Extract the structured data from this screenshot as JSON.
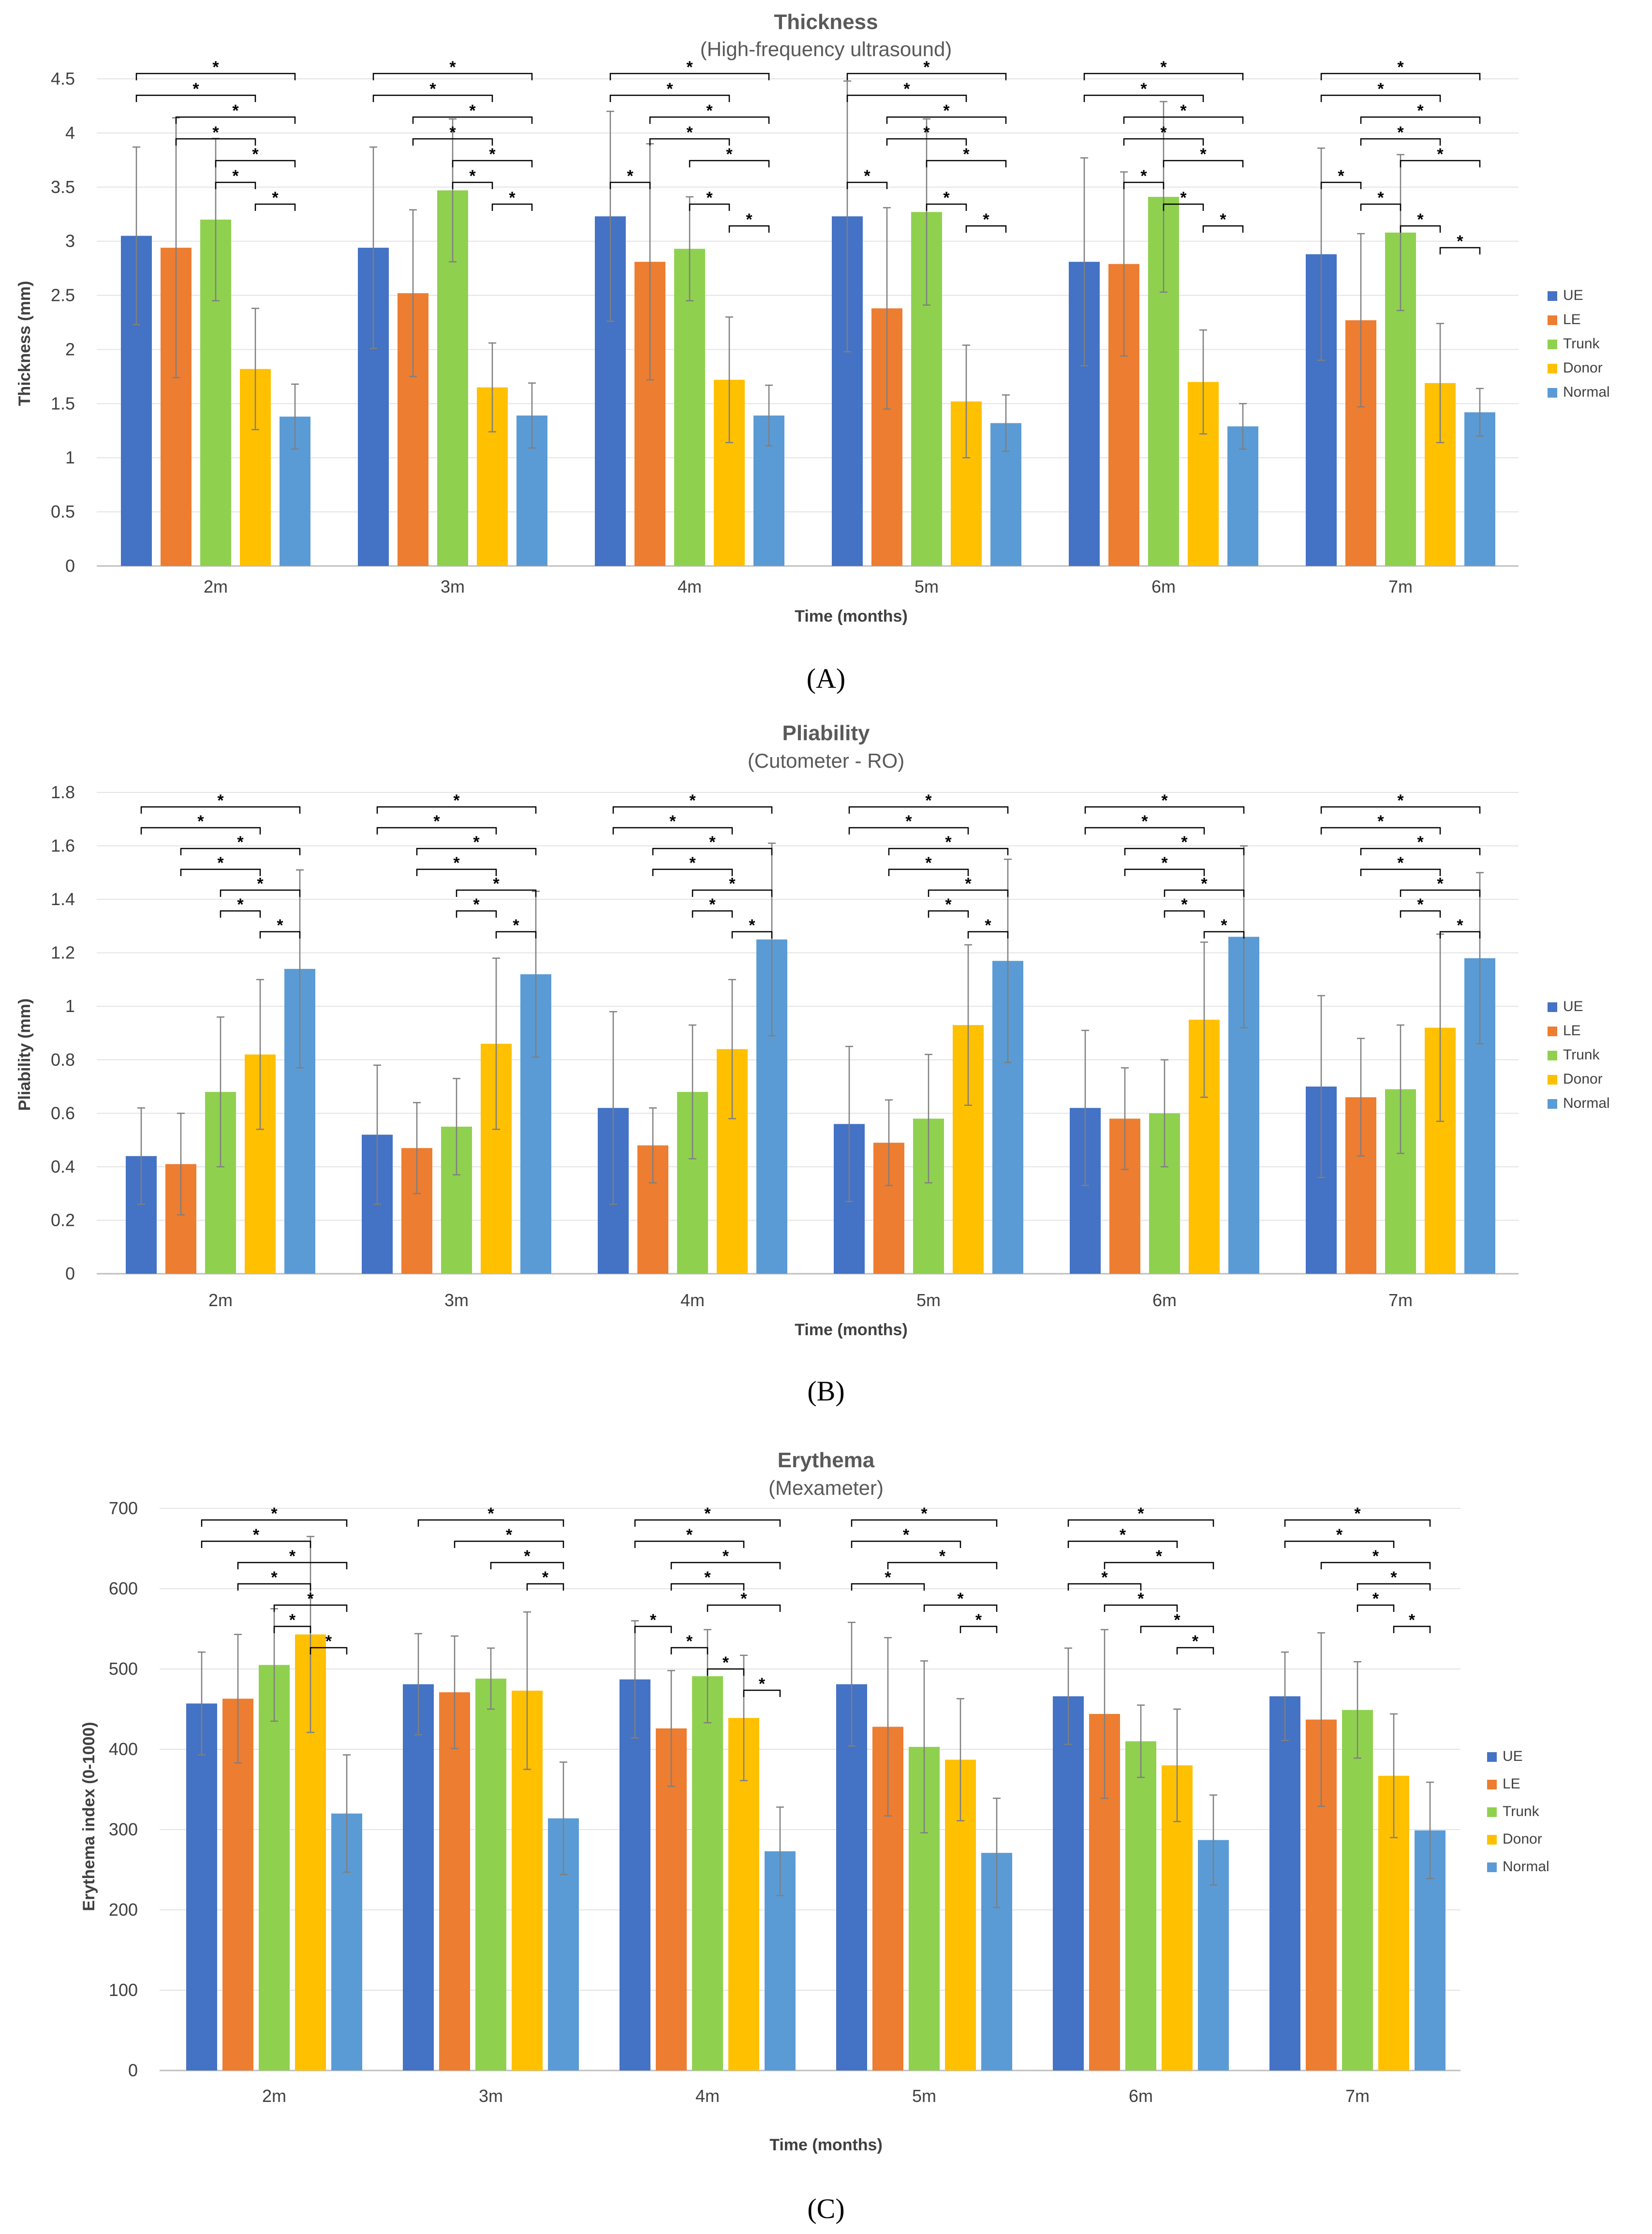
{
  "chart_data": [
    {
      "type": "bar",
      "panel_label": "A",
      "title": "Thickness",
      "subtitle": "(High-frequency ultrasound)",
      "xlabel": "Time (months)",
      "ylabel": "Thickness (mm)",
      "ylim": [
        0,
        4.5
      ],
      "yticks": [
        "0",
        "0.5",
        "1",
        "1.5",
        "2",
        "2.5",
        "3",
        "3.5",
        "4",
        "4.5"
      ],
      "categories": [
        "2m",
        "3m",
        "4m",
        "5m",
        "6m",
        "7m"
      ],
      "series": [
        {
          "name": "UE",
          "color": "#4472C4",
          "values": [
            3.05,
            2.94,
            3.23,
            3.23,
            2.81,
            2.88
          ],
          "errors": [
            0.82,
            0.93,
            0.97,
            1.25,
            0.96,
            0.98
          ]
        },
        {
          "name": "LE",
          "color": "#ED7D31",
          "values": [
            2.94,
            2.52,
            2.81,
            2.38,
            2.79,
            2.27
          ],
          "errors": [
            1.2,
            0.77,
            1.09,
            0.93,
            0.85,
            0.8
          ]
        },
        {
          "name": "Trunk",
          "color": "#8FD14F",
          "values": [
            3.2,
            3.47,
            2.93,
            3.27,
            3.41,
            3.08
          ],
          "errors": [
            0.75,
            0.66,
            0.48,
            0.86,
            0.88,
            0.72
          ]
        },
        {
          "name": "Donor",
          "color": "#FFC000",
          "values": [
            1.82,
            1.65,
            1.72,
            1.52,
            1.7,
            1.69
          ],
          "errors": [
            0.56,
            0.41,
            0.58,
            0.52,
            0.48,
            0.55
          ]
        },
        {
          "name": "Normal",
          "color": "#5B9BD5",
          "values": [
            1.38,
            1.39,
            1.39,
            1.32,
            1.29,
            1.42
          ],
          "errors": [
            0.3,
            0.3,
            0.28,
            0.26,
            0.21,
            0.22
          ]
        }
      ],
      "significance": [
        [
          [
            0,
            4
          ],
          [
            0,
            3
          ],
          [
            1,
            4
          ],
          [
            1,
            3
          ],
          [
            2,
            4
          ],
          [
            2,
            3
          ],
          [
            3,
            4
          ]
        ],
        [
          [
            0,
            4
          ],
          [
            0,
            3
          ],
          [
            1,
            4
          ],
          [
            1,
            3
          ],
          [
            2,
            4
          ],
          [
            2,
            3
          ],
          [
            3,
            4
          ]
        ],
        [
          [
            0,
            4
          ],
          [
            0,
            3
          ],
          [
            1,
            4
          ],
          [
            1,
            3
          ],
          [
            2,
            4
          ],
          [
            2,
            3
          ],
          [
            3,
            4
          ],
          [
            0,
            1
          ]
        ],
        [
          [
            0,
            4
          ],
          [
            0,
            3
          ],
          [
            1,
            4
          ],
          [
            1,
            3
          ],
          [
            2,
            4
          ],
          [
            2,
            3
          ],
          [
            3,
            4
          ],
          [
            0,
            1
          ]
        ],
        [
          [
            0,
            4
          ],
          [
            0,
            3
          ],
          [
            1,
            4
          ],
          [
            1,
            3
          ],
          [
            2,
            4
          ],
          [
            2,
            3
          ],
          [
            3,
            4
          ],
          [
            1,
            2
          ]
        ],
        [
          [
            0,
            4
          ],
          [
            0,
            3
          ],
          [
            1,
            4
          ],
          [
            1,
            3
          ],
          [
            2,
            4
          ],
          [
            2,
            3
          ],
          [
            3,
            4
          ],
          [
            0,
            1
          ],
          [
            1,
            2
          ]
        ]
      ]
    },
    {
      "type": "bar",
      "panel_label": "B",
      "title": "Pliability",
      "subtitle": "(Cutometer - RO)",
      "xlabel": "Time (months)",
      "ylabel": "Pliability (mm)",
      "ylim": [
        0,
        1.8
      ],
      "yticks": [
        "0",
        "0.2",
        "0.4",
        "0.6",
        "0.8",
        "1",
        "1.2",
        "1.4",
        "1.6",
        "1.8"
      ],
      "categories": [
        "2m",
        "3m",
        "4m",
        "5m",
        "6m",
        "7m"
      ],
      "series": [
        {
          "name": "UE",
          "color": "#4472C4",
          "values": [
            0.44,
            0.52,
            0.62,
            0.56,
            0.62,
            0.7
          ],
          "errors": [
            0.18,
            0.26,
            0.36,
            0.29,
            0.29,
            0.34
          ]
        },
        {
          "name": "LE",
          "color": "#ED7D31",
          "values": [
            0.41,
            0.47,
            0.48,
            0.49,
            0.58,
            0.66
          ],
          "errors": [
            0.19,
            0.17,
            0.14,
            0.16,
            0.19,
            0.22
          ]
        },
        {
          "name": "Trunk",
          "color": "#8FD14F",
          "values": [
            0.68,
            0.55,
            0.68,
            0.58,
            0.6,
            0.69
          ],
          "errors": [
            0.28,
            0.18,
            0.25,
            0.24,
            0.2,
            0.24
          ]
        },
        {
          "name": "Donor",
          "color": "#FFC000",
          "values": [
            0.82,
            0.86,
            0.84,
            0.93,
            0.95,
            0.92
          ],
          "errors": [
            0.28,
            0.32,
            0.26,
            0.3,
            0.29,
            0.35
          ]
        },
        {
          "name": "Normal",
          "color": "#5B9BD5",
          "values": [
            1.14,
            1.12,
            1.25,
            1.17,
            1.26,
            1.18
          ],
          "errors": [
            0.37,
            0.31,
            0.36,
            0.38,
            0.34,
            0.32
          ]
        }
      ],
      "significance": [
        [
          [
            0,
            4
          ],
          [
            0,
            3
          ],
          [
            1,
            4
          ],
          [
            1,
            3
          ],
          [
            2,
            4
          ],
          [
            2,
            3
          ],
          [
            3,
            4
          ]
        ],
        [
          [
            0,
            4
          ],
          [
            0,
            3
          ],
          [
            1,
            4
          ],
          [
            1,
            3
          ],
          [
            2,
            4
          ],
          [
            2,
            3
          ],
          [
            3,
            4
          ]
        ],
        [
          [
            0,
            4
          ],
          [
            0,
            3
          ],
          [
            1,
            4
          ],
          [
            1,
            3
          ],
          [
            2,
            4
          ],
          [
            2,
            3
          ],
          [
            3,
            4
          ]
        ],
        [
          [
            0,
            4
          ],
          [
            0,
            3
          ],
          [
            1,
            4
          ],
          [
            1,
            3
          ],
          [
            2,
            4
          ],
          [
            2,
            3
          ],
          [
            3,
            4
          ]
        ],
        [
          [
            0,
            4
          ],
          [
            0,
            3
          ],
          [
            1,
            4
          ],
          [
            1,
            3
          ],
          [
            2,
            4
          ],
          [
            2,
            3
          ],
          [
            3,
            4
          ]
        ],
        [
          [
            0,
            4
          ],
          [
            0,
            3
          ],
          [
            1,
            4
          ],
          [
            1,
            3
          ],
          [
            2,
            4
          ],
          [
            2,
            3
          ],
          [
            3,
            4
          ]
        ]
      ]
    },
    {
      "type": "bar",
      "panel_label": "C",
      "title": "Erythema",
      "subtitle": "(Mexameter)",
      "xlabel": "Time (months)",
      "ylabel": "Erythema index (0-1000)",
      "ylim": [
        0,
        700
      ],
      "yticks": [
        "0",
        "100",
        "200",
        "300",
        "400",
        "500",
        "600",
        "700"
      ],
      "categories": [
        "2m",
        "3m",
        "4m",
        "5m",
        "6m",
        "7m"
      ],
      "series": [
        {
          "name": "UE",
          "color": "#4472C4",
          "values": [
            457,
            481,
            487,
            481,
            466,
            466
          ],
          "errors": [
            64,
            63,
            73,
            77,
            60,
            55
          ]
        },
        {
          "name": "LE",
          "color": "#ED7D31",
          "values": [
            463,
            471,
            426,
            428,
            444,
            437
          ],
          "errors": [
            80,
            70,
            72,
            111,
            105,
            108
          ]
        },
        {
          "name": "Trunk",
          "color": "#8FD14F",
          "values": [
            505,
            488,
            491,
            403,
            410,
            449
          ],
          "errors": [
            70,
            38,
            58,
            107,
            45,
            60
          ]
        },
        {
          "name": "Donor",
          "color": "#FFC000",
          "values": [
            543,
            473,
            439,
            387,
            380,
            367
          ],
          "errors": [
            122,
            98,
            78,
            76,
            70,
            77
          ]
        },
        {
          "name": "Normal",
          "color": "#5B9BD5",
          "values": [
            320,
            314,
            273,
            271,
            287,
            299
          ],
          "errors": [
            73,
            70,
            55,
            68,
            56,
            60
          ]
        }
      ],
      "significance": [
        [
          [
            0,
            4
          ],
          [
            0,
            3
          ],
          [
            1,
            4
          ],
          [
            1,
            3
          ],
          [
            2,
            4
          ],
          [
            2,
            3
          ],
          [
            3,
            4
          ]
        ],
        [
          [
            0,
            4
          ],
          [
            1,
            4
          ],
          [
            2,
            4
          ],
          [
            3,
            4
          ]
        ],
        [
          [
            0,
            4
          ],
          [
            0,
            3
          ],
          [
            1,
            4
          ],
          [
            1,
            3
          ],
          [
            2,
            4
          ],
          [
            2,
            3
          ],
          [
            3,
            4
          ],
          [
            0,
            1
          ],
          [
            1,
            2
          ]
        ],
        [
          [
            0,
            4
          ],
          [
            0,
            3
          ],
          [
            1,
            4
          ],
          [
            2,
            4
          ],
          [
            3,
            4
          ],
          [
            0,
            2
          ]
        ],
        [
          [
            0,
            4
          ],
          [
            0,
            3
          ],
          [
            1,
            4
          ],
          [
            1,
            3
          ],
          [
            2,
            4
          ],
          [
            3,
            4
          ],
          [
            0,
            2
          ]
        ],
        [
          [
            0,
            4
          ],
          [
            0,
            3
          ],
          [
            1,
            4
          ],
          [
            2,
            4
          ],
          [
            2,
            3
          ],
          [
            3,
            4
          ]
        ]
      ]
    }
  ]
}
